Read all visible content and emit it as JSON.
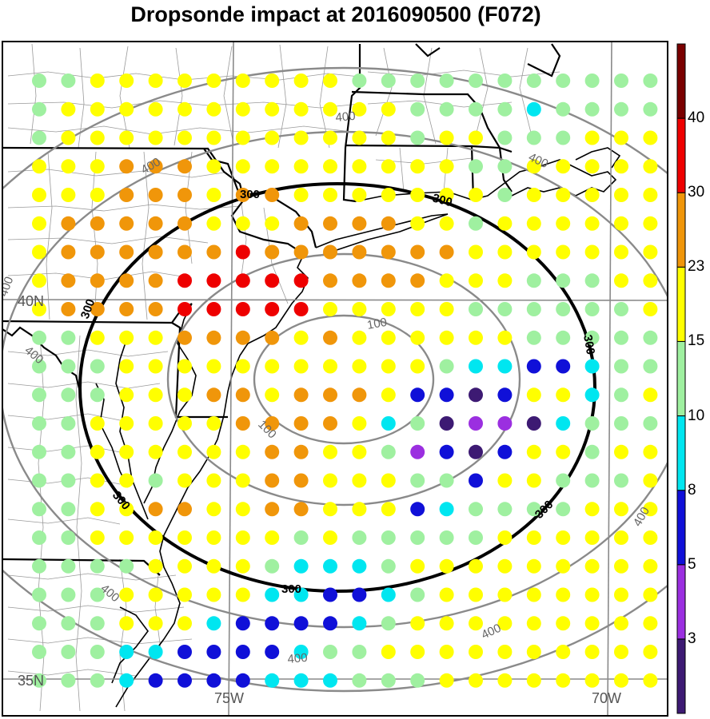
{
  "title": "Dropsonde impact at 2016090500 (F072)",
  "map": {
    "longitude_labels": [
      "75W",
      "70W"
    ],
    "latitude_labels": [
      "40N",
      "35N"
    ],
    "contour_labels": {
      "inner": "100",
      "mid_black": "300",
      "outer": "400"
    }
  },
  "colorbar": {
    "levels": [
      "3",
      "5",
      "8",
      "10",
      "15",
      "23",
      "30",
      "40"
    ],
    "colors": [
      "#3d1a73",
      "#9b2fe0",
      "#1010d8",
      "#00e6f0",
      "#9ff0a0",
      "#ffff00",
      "#f0960a",
      "#ee0000",
      "#7a0000"
    ]
  },
  "legend_palette_names": [
    "dark-purple",
    "purple",
    "blue",
    "cyan",
    "light-green",
    "yellow",
    "orange",
    "red",
    "dark-red"
  ]
}
